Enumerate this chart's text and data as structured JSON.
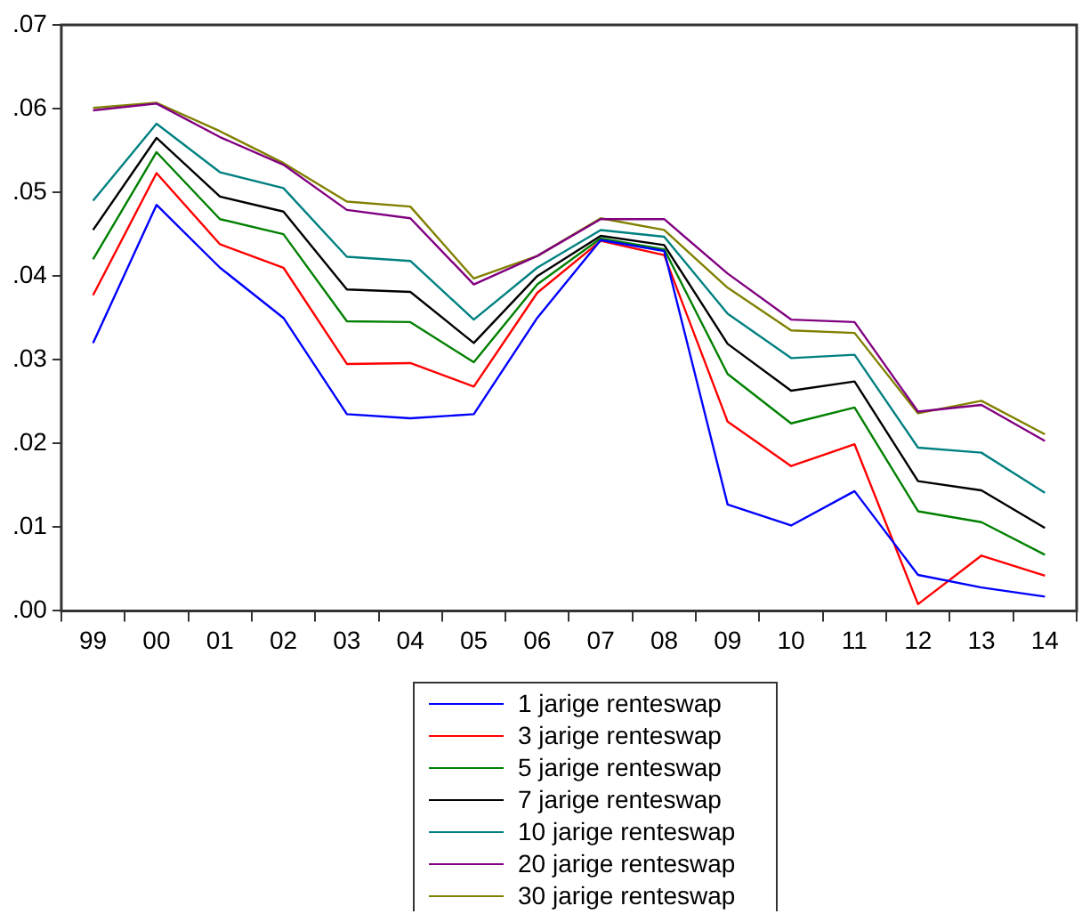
{
  "chart_data": {
    "type": "line",
    "categories": [
      "99",
      "00",
      "01",
      "02",
      "03",
      "04",
      "05",
      "06",
      "07",
      "08",
      "09",
      "10",
      "11",
      "12",
      "13",
      "14"
    ],
    "ylim": [
      0,
      0.07
    ],
    "yticks": [
      {
        "value": 0,
        "label": ".00"
      },
      {
        "value": 0.01,
        "label": ".01"
      },
      {
        "value": 0.02,
        "label": ".02"
      },
      {
        "value": 0.03,
        "label": ".03"
      },
      {
        "value": 0.04,
        "label": ".04"
      },
      {
        "value": 0.05,
        "label": ".05"
      },
      {
        "value": 0.06,
        "label": ".06"
      },
      {
        "value": 0.07,
        "label": ".07"
      }
    ],
    "grid": false,
    "legend": "bottom",
    "marker": "none",
    "line_style": "solid",
    "series": [
      {
        "name": "1 jarige renteswap",
        "color": "#0000ff",
        "values": [
          0.032,
          0.0485,
          0.041,
          0.035,
          0.0235,
          0.023,
          0.0235,
          0.035,
          0.0443,
          0.043,
          0.0127,
          0.0102,
          0.0143,
          0.0043,
          0.0028,
          0.0017
        ]
      },
      {
        "name": "3 jarige renteswap",
        "color": "#ff0000",
        "values": [
          0.0377,
          0.0523,
          0.0438,
          0.041,
          0.0295,
          0.0296,
          0.0268,
          0.038,
          0.0442,
          0.0425,
          0.0226,
          0.0173,
          0.0199,
          0.0008,
          0.0066,
          0.0042
        ]
      },
      {
        "name": "5 jarige renteswap",
        "color": "#008000",
        "values": [
          0.042,
          0.0548,
          0.0468,
          0.045,
          0.0346,
          0.0345,
          0.0297,
          0.039,
          0.0445,
          0.0432,
          0.0283,
          0.0224,
          0.0243,
          0.0119,
          0.0106,
          0.0067
        ]
      },
      {
        "name": "7 jarige renteswap",
        "color": "#000000",
        "values": [
          0.0455,
          0.0565,
          0.0495,
          0.0477,
          0.0384,
          0.0381,
          0.032,
          0.04,
          0.0448,
          0.0437,
          0.0319,
          0.0263,
          0.0274,
          0.0155,
          0.0144,
          0.0099
        ]
      },
      {
        "name": "10 jarige renteswap",
        "color": "#008080",
        "values": [
          0.049,
          0.0582,
          0.0524,
          0.0505,
          0.0423,
          0.0418,
          0.0348,
          0.041,
          0.0455,
          0.0447,
          0.0355,
          0.0302,
          0.0306,
          0.0195,
          0.0189,
          0.0141
        ]
      },
      {
        "name": "20 jarige renteswap",
        "color": "#800080",
        "values": [
          0.0598,
          0.0606,
          0.0566,
          0.0533,
          0.0479,
          0.0469,
          0.039,
          0.0424,
          0.0468,
          0.0468,
          0.0403,
          0.0348,
          0.0345,
          0.0238,
          0.0246,
          0.0203
        ]
      },
      {
        "name": "30 jarige renteswap",
        "color": "#808000",
        "values": [
          0.0601,
          0.0607,
          0.0573,
          0.0535,
          0.0489,
          0.0483,
          0.0397,
          0.0424,
          0.0469,
          0.0455,
          0.0386,
          0.0335,
          0.0332,
          0.0236,
          0.0251,
          0.0211
        ]
      }
    ]
  }
}
